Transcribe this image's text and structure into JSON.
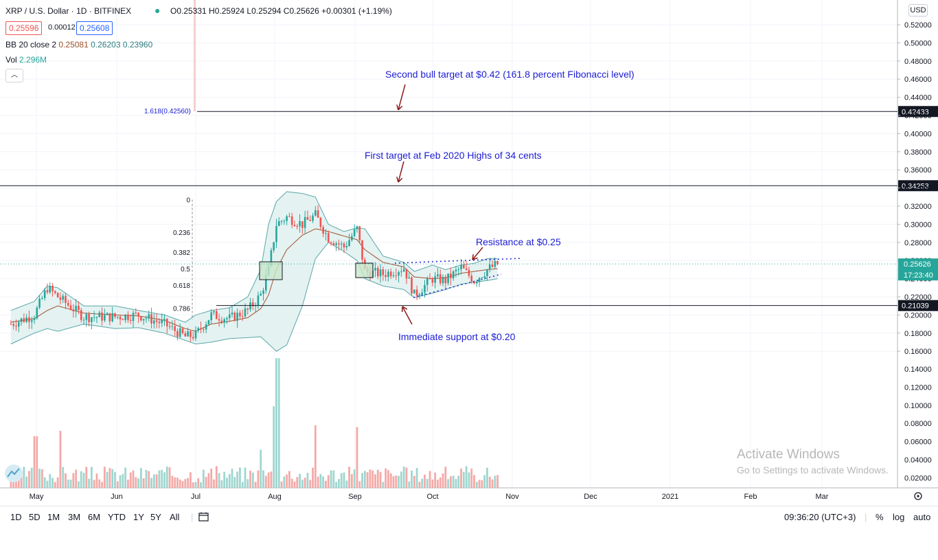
{
  "header": {
    "symbol": "XRP / U.S. Dollar · 1D · BITFINEX",
    "ohlc": "O0.25331 H0.25924 L0.25294 C0.25626 +0.00301 (+1.19%)",
    "bid": "0.25596",
    "spread": "0.00012",
    "ask": "0.25608",
    "bb_name": "BB 20 close 2",
    "bb_values": [
      "0.25081",
      "0.26203",
      "0.23960"
    ],
    "vol_name": "Vol",
    "vol_value": "2.296M"
  },
  "currency_button": "USD",
  "colors": {
    "up": "#26a69a",
    "down": "#ef5350",
    "bb_line": "#5aa6a6",
    "bb_fill": "#e4f2f2",
    "basis": "#a0522d",
    "annotation_text": "#1c1cd4",
    "arrow": "#8b1a1a"
  },
  "chart_data": {
    "type": "candlestick",
    "title": "XRP / U.S. Dollar · 1D · BITFINEX",
    "x_ticks": [
      "May",
      "Jun",
      "Jul",
      "Aug",
      "Sep",
      "Oct",
      "Nov",
      "Dec",
      "2021",
      "Feb",
      "Mar"
    ],
    "y_ticks": [
      "0.52000",
      "0.50000",
      "0.48000",
      "0.46000",
      "0.44000",
      "0.42000",
      "0.40000",
      "0.38000",
      "0.36000",
      "0.34000",
      "0.32000",
      "0.30000",
      "0.28000",
      "0.26000",
      "0.24000",
      "0.22000",
      "0.20000",
      "0.18000",
      "0.16000"
    ],
    "volume_ticks": [
      "0.14000",
      "0.12000",
      "0.10000",
      "0.08000",
      "0.06000",
      "0.04000",
      "0.02000"
    ],
    "ylim": [
      0.15,
      0.53
    ],
    "price_series": {
      "name": "XRP/USD",
      "x": [
        "2020-04-22",
        "2020-05-01",
        "2020-05-06",
        "2020-05-10",
        "2020-05-20",
        "2020-06-01",
        "2020-06-10",
        "2020-06-20",
        "2020-06-28",
        "2020-07-02",
        "2020-07-08",
        "2020-07-15",
        "2020-07-22",
        "2020-07-27",
        "2020-07-30",
        "2020-08-02",
        "2020-08-06",
        "2020-08-12",
        "2020-08-17",
        "2020-08-22",
        "2020-08-28",
        "2020-09-02",
        "2020-09-05",
        "2020-09-12",
        "2020-09-20",
        "2020-09-24",
        "2020-10-01",
        "2020-10-06",
        "2020-10-12",
        "2020-10-17",
        "2020-10-22",
        "2020-10-26"
      ],
      "close": [
        0.19,
        0.2,
        0.23,
        0.22,
        0.198,
        0.198,
        0.2,
        0.19,
        0.176,
        0.178,
        0.2,
        0.196,
        0.205,
        0.222,
        0.25,
        0.3,
        0.308,
        0.3,
        0.31,
        0.285,
        0.275,
        0.295,
        0.248,
        0.245,
        0.252,
        0.222,
        0.24,
        0.238,
        0.252,
        0.238,
        0.25,
        0.256
      ]
    },
    "bollinger": {
      "name": "BB 20 close 2",
      "upper": [
        0.205,
        0.215,
        0.232,
        0.23,
        0.21,
        0.21,
        0.205,
        0.2,
        0.192,
        0.2,
        0.205,
        0.208,
        0.22,
        0.25,
        0.3,
        0.325,
        0.336,
        0.334,
        0.33,
        0.3,
        0.292,
        0.296,
        0.295,
        0.265,
        0.258,
        0.248,
        0.255,
        0.25,
        0.255,
        0.257,
        0.262,
        0.262
      ],
      "basis": [
        0.192,
        0.196,
        0.205,
        0.21,
        0.202,
        0.2,
        0.199,
        0.194,
        0.185,
        0.182,
        0.19,
        0.193,
        0.197,
        0.207,
        0.222,
        0.25,
        0.272,
        0.288,
        0.295,
        0.292,
        0.287,
        0.283,
        0.272,
        0.258,
        0.253,
        0.242,
        0.24,
        0.241,
        0.246,
        0.248,
        0.25,
        0.251
      ],
      "lower": [
        0.168,
        0.18,
        0.185,
        0.182,
        0.19,
        0.185,
        0.186,
        0.18,
        0.172,
        0.168,
        0.17,
        0.174,
        0.175,
        0.176,
        0.168,
        0.16,
        0.167,
        0.21,
        0.262,
        0.28,
        0.27,
        0.26,
        0.24,
        0.232,
        0.228,
        0.219,
        0.224,
        0.228,
        0.234,
        0.236,
        0.238,
        0.24
      ]
    },
    "fib_levels": [
      {
        "label": "0",
        "value": 0.3272
      },
      {
        "label": "0.236",
        "value": 0.2912
      },
      {
        "label": "0.382",
        "value": 0.2691
      },
      {
        "label": "0.5",
        "value": 0.251
      },
      {
        "label": "0.618",
        "value": 0.2329
      },
      {
        "label": "0.786",
        "value": 0.2074
      }
    ],
    "horizontal_levels": [
      {
        "label": "0.42433",
        "value": 0.42433
      },
      {
        "label": "0.34253",
        "value": 0.34253
      },
      {
        "label": "0.21039",
        "value": 0.21039
      }
    ],
    "fib_extension_label": "1.618(0.42560)",
    "last_price": "0.25626",
    "countdown": "17:23:40",
    "annotations": [
      "Second bull target at $0.42 (161.8 percent Fibonacci level)",
      "First target at Feb 2020 Highs of 34 cents",
      "Resistance at $0.25",
      "Immediate support at $0.20"
    ],
    "volume_peak": 0.143
  },
  "watermark": {
    "title": "Activate Windows",
    "subtitle": "Go to Settings to activate Windows."
  },
  "toolbar": {
    "ranges": [
      "1D",
      "5D",
      "1M",
      "3M",
      "6M",
      "YTD",
      "1Y",
      "5Y",
      "All"
    ],
    "time": "09:36:20 (UTC+3)",
    "percent": "%",
    "log": "log",
    "auto": "auto"
  }
}
